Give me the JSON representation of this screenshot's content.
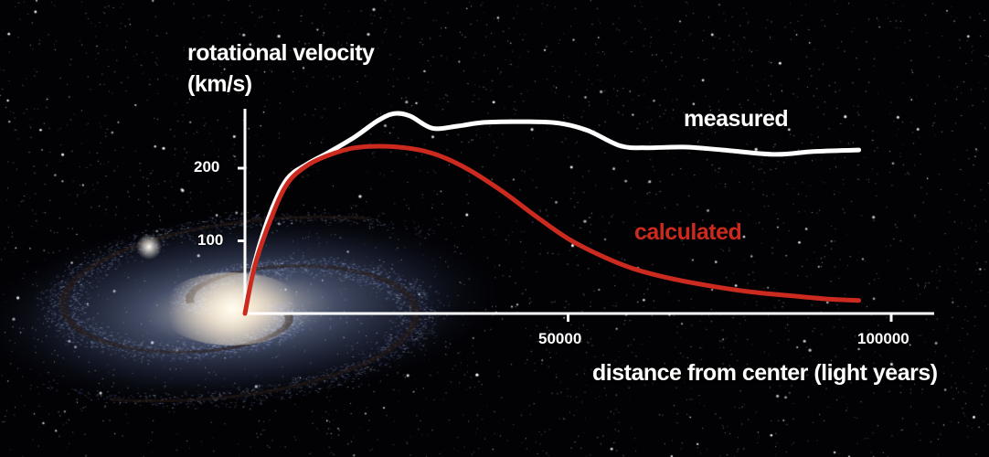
{
  "chart_data": {
    "type": "line",
    "ylabel_line1": "rotational velocity",
    "ylabel_line2": "(km/s)",
    "xlabel": "distance from center (light years)",
    "xlim": [
      0,
      105000
    ],
    "ylim": [
      0,
      285
    ],
    "x_ticks": [
      {
        "value": 50000,
        "label": "50000"
      },
      {
        "value": 100000,
        "label": "100000"
      }
    ],
    "y_ticks": [
      {
        "value": 100,
        "label": "100"
      },
      {
        "value": 200,
        "label": "200"
      }
    ],
    "series": [
      {
        "name": "measured",
        "color": "#ffffff",
        "x": [
          0,
          1500,
          4000,
          6500,
          9500,
          13000,
          17000,
          20500,
          23000,
          25500,
          29000,
          33000,
          37000,
          43000,
          48500,
          53000,
          58000,
          62000,
          68000,
          74000,
          82000,
          88000,
          95000
        ],
        "y": [
          0,
          70,
          140,
          185,
          205,
          222,
          243,
          265,
          275,
          272,
          255,
          258,
          263,
          264,
          262,
          252,
          231,
          228,
          229,
          225,
          219,
          223,
          225
        ]
      },
      {
        "name": "calculated",
        "color": "#cc2a1e",
        "x": [
          0,
          1500,
          4000,
          6500,
          9500,
          13000,
          17000,
          22000,
          27000,
          31000,
          35000,
          40000,
          45000,
          50000,
          55000,
          60000,
          66000,
          72000,
          78000,
          85000,
          90000,
          95000
        ],
        "y": [
          0,
          65,
          130,
          178,
          203,
          218,
          228,
          230,
          225,
          214,
          196,
          167,
          134,
          103,
          80,
          62,
          48,
          38,
          30,
          24,
          20,
          18
        ]
      }
    ]
  },
  "background": {
    "scene": "starfield-with-spiral-galaxy",
    "colors": {
      "space": "#020205",
      "galaxy_core": "#fff8e6",
      "galaxy_arm": "#7d9bd6",
      "dust_lane": "#3a2a22"
    }
  }
}
